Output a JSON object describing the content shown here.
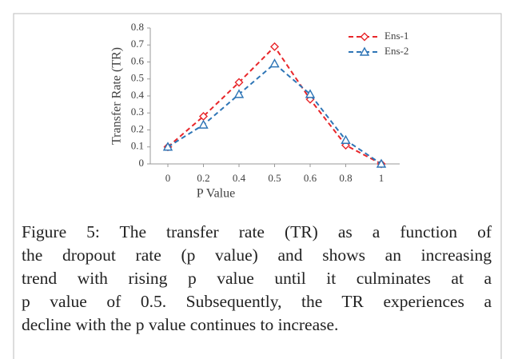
{
  "chart_data": {
    "type": "line",
    "xlabel": "P Value",
    "ylabel": "Transfer Rate (TR)",
    "categories": [
      "0",
      "0.2",
      "0.4",
      "0.5",
      "0.6",
      "0.8",
      "1"
    ],
    "series": [
      {
        "name": "Ens-1",
        "color": "#e8262a",
        "marker": "diamond",
        "values": [
          0.1,
          0.28,
          0.48,
          0.69,
          0.38,
          0.11,
          0.0
        ]
      },
      {
        "name": "Ens-2",
        "color": "#2e75b6",
        "marker": "triangle",
        "values": [
          0.1,
          0.23,
          0.41,
          0.59,
          0.41,
          0.14,
          0.0
        ]
      }
    ],
    "ylim": [
      0,
      0.8
    ],
    "yticks": [
      0,
      0.1,
      0.2,
      0.3,
      0.4,
      0.5,
      0.6,
      0.7,
      0.8
    ],
    "legend": "upper right",
    "grid": false
  },
  "caption": {
    "lines": [
      "Figure 5: The transfer rate (TR) as a function of",
      "the dropout rate (p value) and shows an increasing",
      "trend with rising p value until it culminates at a",
      "p value of 0.5. Subsequently, the TR experiences a",
      "decline with the p value continues to increase."
    ]
  }
}
